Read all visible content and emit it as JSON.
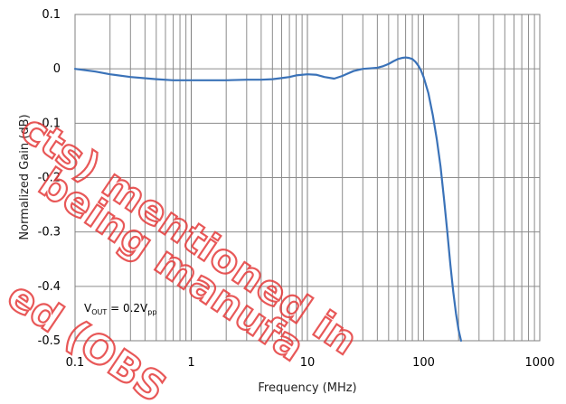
{
  "chart_data": {
    "type": "line",
    "title": "",
    "xlabel": "Frequency (MHz)",
    "ylabel": "Normalized Gain (dB)",
    "xscale": "log",
    "xlim": [
      0.1,
      1000
    ],
    "ylim": [
      -0.5,
      0.1
    ],
    "x_tick_labels": [
      "0.1",
      "1",
      "10",
      "100",
      "1000"
    ],
    "x_ticks": [
      0.1,
      1,
      10,
      100,
      1000
    ],
    "y_tick_labels": [
      "0.1",
      "0",
      "-0.1",
      "-0.2",
      "-0.3",
      "-0.4",
      "-0.5"
    ],
    "y_ticks": [
      0.1,
      0,
      -0.1,
      -0.2,
      -0.3,
      -0.4,
      -0.5
    ],
    "grid": true,
    "legend": "none",
    "series_color": "#3a72b8",
    "annotation": {
      "base": "V",
      "sub1": "OUT",
      "mid": " = 0.2V",
      "sub2": "pp"
    },
    "watermark": {
      "line1": "cts) mentioned in",
      "line2": "being manufa",
      "line3": "ed (OBS"
    },
    "series": [
      {
        "x": [
          0.1,
          0.15,
          0.2,
          0.3,
          0.5,
          0.7,
          1,
          1.5,
          2,
          3,
          4,
          5,
          6,
          7,
          8,
          10,
          12,
          14,
          17,
          20,
          25,
          30,
          35,
          40,
          45,
          50,
          55,
          60,
          65,
          70,
          75,
          80,
          85,
          90,
          95,
          100,
          110,
          120,
          130,
          140,
          150,
          160,
          170,
          180,
          190,
          200,
          210
        ],
        "y": [
          0.0,
          -0.005,
          -0.01,
          -0.015,
          -0.019,
          -0.021,
          -0.021,
          -0.021,
          -0.021,
          -0.02,
          -0.02,
          -0.019,
          -0.017,
          -0.015,
          -0.012,
          -0.01,
          -0.011,
          -0.015,
          -0.018,
          -0.013,
          -0.004,
          0.0,
          0.001,
          0.002,
          0.005,
          0.009,
          0.014,
          0.018,
          0.02,
          0.021,
          0.02,
          0.018,
          0.013,
          0.006,
          -0.003,
          -0.015,
          -0.045,
          -0.085,
          -0.13,
          -0.18,
          -0.24,
          -0.3,
          -0.36,
          -0.41,
          -0.45,
          -0.48,
          -0.5
        ]
      }
    ]
  }
}
